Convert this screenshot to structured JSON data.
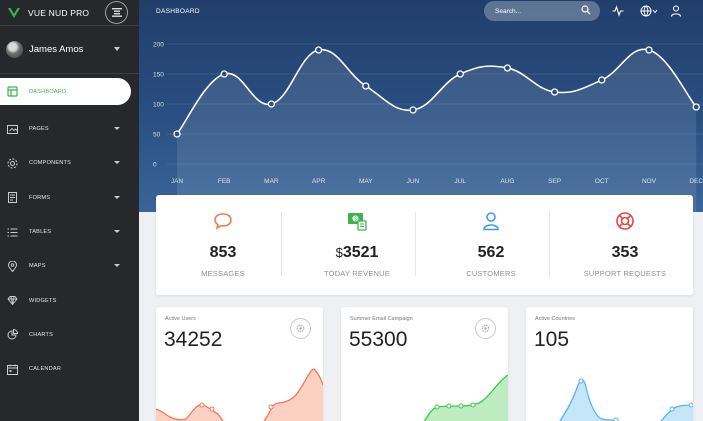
{
  "app": {
    "title": "VUE NUD PRO",
    "accent_color": "#3bb54a"
  },
  "user": {
    "name": "James Amos",
    "avatar_icon": "user-avatar"
  },
  "sidebar": {
    "items": [
      {
        "label": "DASHBOARD",
        "icon": "dashboard-icon",
        "active": true,
        "has_submenu": false
      },
      {
        "label": "PAGES",
        "icon": "pages-icon",
        "active": false,
        "has_submenu": true
      },
      {
        "label": "COMPONENTS",
        "icon": "components-icon",
        "active": false,
        "has_submenu": true
      },
      {
        "label": "FORMS",
        "icon": "forms-icon",
        "active": false,
        "has_submenu": true
      },
      {
        "label": "TABLES",
        "icon": "tables-icon",
        "active": false,
        "has_submenu": true
      },
      {
        "label": "MAPS",
        "icon": "map-pin-icon",
        "active": false,
        "has_submenu": true
      },
      {
        "label": "WIDGETS",
        "icon": "widgets-icon",
        "active": false,
        "has_submenu": false
      },
      {
        "label": "CHARTS",
        "icon": "pie-chart-icon",
        "active": false,
        "has_submenu": false
      },
      {
        "label": "CALENDAR",
        "icon": "calendar-icon",
        "active": false,
        "has_submenu": false
      }
    ]
  },
  "header": {
    "title": "DASHBOARD",
    "search_placeholder": "Search...",
    "icons": [
      "activity-icon",
      "globe-icon",
      "user-icon"
    ]
  },
  "chart_data": {
    "type": "line",
    "categories": [
      "JAN",
      "FEB",
      "MAR",
      "APR",
      "MAY",
      "JUN",
      "JUL",
      "AUG",
      "SEP",
      "OCT",
      "NOV",
      "DEC"
    ],
    "values": [
      50,
      150,
      100,
      190,
      130,
      90,
      150,
      160,
      120,
      140,
      190,
      95
    ],
    "ylim": [
      0,
      200
    ],
    "yticks": [
      0,
      50,
      100,
      150,
      200
    ],
    "grid": true
  },
  "stats": [
    {
      "icon": "chat-bubble-icon",
      "value": "853",
      "currency": "",
      "label": "MESSAGES",
      "color": "#f07a52"
    },
    {
      "icon": "money-icon",
      "value": "3521",
      "currency": "$",
      "label": "TODAY REVENUE",
      "color": "#3bb54a"
    },
    {
      "icon": "user-icon",
      "value": "562",
      "currency": "",
      "label": "CUSTOMERS",
      "color": "#3aa0e6"
    },
    {
      "icon": "lifebuoy-icon",
      "value": "353",
      "currency": "",
      "label": "SUPPORT REQUESTS",
      "color": "#e84545"
    }
  ],
  "cards": [
    {
      "label": "Active Users",
      "value": "34252",
      "color": "#f07a52"
    },
    {
      "label": "Summer Email Campaign",
      "value": "55300",
      "color": "#3ec94a"
    },
    {
      "label": "Active Countries",
      "value": "105",
      "color": "#5ab4ef"
    }
  ]
}
